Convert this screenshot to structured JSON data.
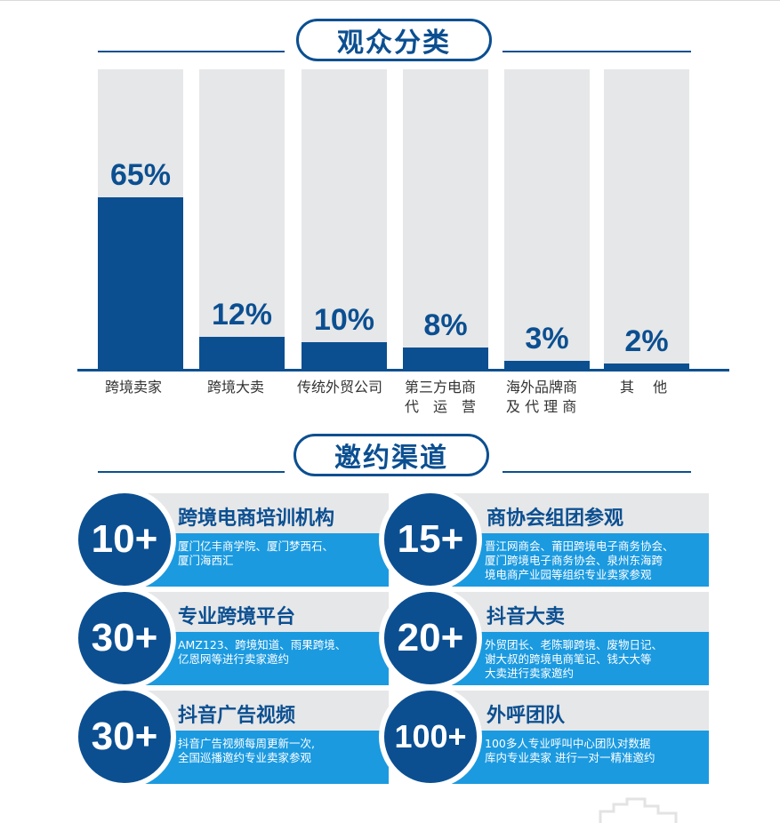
{
  "section1": {
    "title": "观众分类"
  },
  "section2": {
    "title": "邀约渠道"
  },
  "chart_data": {
    "type": "bar",
    "title": "观众分类",
    "categories": [
      "跨境卖家",
      "跨境大卖",
      "传统外贸公司",
      "第三方电商\n代　运　营",
      "海外品牌商\n及 代 理 商",
      "其　 他"
    ],
    "values": [
      65,
      12,
      10,
      8,
      3,
      2
    ],
    "value_labels": [
      "65%",
      "12%",
      "10%",
      "8%",
      "3%",
      "2%"
    ],
    "ylim": [
      0,
      100
    ],
    "colors": {
      "fill": "#0b4f91",
      "track": "#e6e7e8"
    }
  },
  "channels": [
    {
      "number": "10+",
      "title": "跨境电商培训机构",
      "desc": "厦门亿丰商学院、厦门梦西石、\n厦门海西汇"
    },
    {
      "number": "15+",
      "title": "商协会组团参观",
      "desc": "晋江网商会、莆田跨境电子商务协会、\n厦门跨境电子商务协会、泉州东海跨\n境电商产业园等组织专业卖家参观"
    },
    {
      "number": "30+",
      "title": "专业跨境平台",
      "desc": "AMZ123、跨境知道、雨果跨境、\n亿恩网等进行卖家邀约"
    },
    {
      "number": "20+",
      "title": "抖音大卖",
      "desc": "外贸团长、老陈聊跨境、废物日记、\n谢大叔的跨境电商笔记、钱大大等\n大卖进行卖家邀约"
    },
    {
      "number": "30+",
      "title": "抖音广告视频",
      "desc": "抖音广告视频每周更新一次,\n全国巡播邀约专业卖家参观"
    },
    {
      "number": "100+",
      "title": "外呼团队",
      "desc": "100多人专业呼叫中心团队对数据\n库内专业卖家 进行一对一精准邀约"
    }
  ],
  "colors": {
    "primary": "#0b4f91",
    "accent": "#1b9ae0",
    "card_grey": "#e6e7e8"
  }
}
